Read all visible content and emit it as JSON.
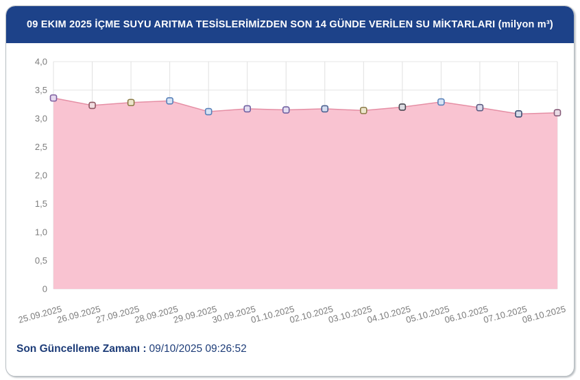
{
  "header": {
    "title": "09 EKIM 2025 İÇME SUYU ARITMA TESİSLERİMİZDEN SON 14 GÜNDE VERİLEN SU MİKTARLARI (milyon m³)",
    "background": "#1d4289",
    "text_color": "#ffffff"
  },
  "footer": {
    "label": "Son Güncelleme Zamanı :",
    "value": "09/10/2025 09:26:52",
    "color": "#1d3c78"
  },
  "chart_data": {
    "type": "area",
    "title": "09 EKIM 2025 İÇME SUYU ARITMA TESİSLERİMİZDEN SON 14 GÜNDE VERİLEN SU MİKTARLARI (milyon m³)",
    "categories": [
      "25.09.2025",
      "26.09.2025",
      "27.09.2025",
      "28.09.2025",
      "29.09.2025",
      "30.09.2025",
      "01.10.2025",
      "02.10.2025",
      "03.10.2025",
      "04.10.2025",
      "05.10.2025",
      "06.10.2025",
      "07.10.2025",
      "08.10.2025"
    ],
    "values": [
      3.36,
      3.23,
      3.28,
      3.31,
      3.12,
      3.17,
      3.15,
      3.17,
      3.14,
      3.2,
      3.29,
      3.19,
      3.08,
      3.1
    ],
    "xlabel": "",
    "ylabel": "",
    "ylim": [
      0,
      4
    ],
    "ytick_step": 0.5,
    "ytick_labels_top_to_bottom": [
      "4,0",
      "3,5",
      "3,0",
      "2,5",
      "2,0",
      "1,5",
      "1,0",
      "0,5",
      "0"
    ],
    "grid": true,
    "legend_position": "none",
    "x_label_rotation_deg": -15,
    "colors": {
      "area_fill": "#f9c3d1",
      "line": "#e58ea4",
      "grid_horizontal": "#e6e6e6",
      "grid_vertical": "#e0e0e0",
      "axis_text": "#7c7c7c"
    },
    "markers": [
      {
        "stroke": "#7d5d9e",
        "fill": "#e6d9ef"
      },
      {
        "stroke": "#8d5560",
        "fill": "#f0dde0"
      },
      {
        "stroke": "#8a7a45",
        "fill": "#ece5cc"
      },
      {
        "stroke": "#567fb8",
        "fill": "#d8e4f5"
      },
      {
        "stroke": "#567fb8",
        "fill": "#d8e4f5"
      },
      {
        "stroke": "#6f5fa0",
        "fill": "#e2dcf0"
      },
      {
        "stroke": "#6f5fa0",
        "fill": "#e2dcf0"
      },
      {
        "stroke": "#4a5f8f",
        "fill": "#d5ddf0"
      },
      {
        "stroke": "#8a7a45",
        "fill": "#ece5cc"
      },
      {
        "stroke": "#45454f",
        "fill": "#dcdce2"
      },
      {
        "stroke": "#567fb8",
        "fill": "#d8e4f5"
      },
      {
        "stroke": "#5a5a80",
        "fill": "#dcdcec"
      },
      {
        "stroke": "#3d4d70",
        "fill": "#d5dae8"
      },
      {
        "stroke": "#855a78",
        "fill": "#eadbe5"
      }
    ]
  }
}
